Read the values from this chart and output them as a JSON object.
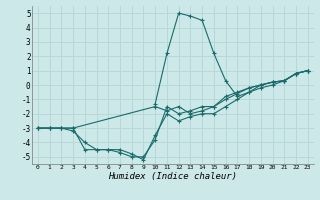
{
  "xlabel": "Humidex (Indice chaleur)",
  "bg_color": "#cce8e8",
  "grid_color": "#b8d8d8",
  "line_color": "#1a6b6b",
  "xlim": [
    -0.5,
    23.5
  ],
  "ylim": [
    -5.5,
    5.5
  ],
  "xticks": [
    0,
    1,
    2,
    3,
    4,
    5,
    6,
    7,
    8,
    9,
    10,
    11,
    12,
    13,
    14,
    15,
    16,
    17,
    18,
    19,
    20,
    21,
    22,
    23
  ],
  "yticks": [
    -5,
    -4,
    -3,
    -2,
    -1,
    0,
    1,
    2,
    3,
    4,
    5
  ],
  "lines": [
    {
      "x": [
        0,
        1,
        2,
        3,
        4,
        5,
        6,
        7,
        8,
        9,
        10,
        11,
        12,
        13,
        14,
        15,
        16,
        17,
        18,
        19,
        20,
        21,
        22,
        23
      ],
      "y": [
        -3,
        -3,
        -3,
        -3,
        -4.5,
        -4.5,
        -4.5,
        -4.7,
        -5,
        -5,
        -3.8,
        -1.5,
        -2.0,
        -1.8,
        -1.5,
        -1.5,
        -1.0,
        -0.6,
        -0.2,
        0.0,
        0.2,
        0.3,
        0.8,
        1.0
      ]
    },
    {
      "x": [
        0,
        1,
        2,
        3,
        4,
        5,
        6,
        7,
        8,
        9,
        10,
        11,
        12,
        13,
        14,
        15,
        16,
        17,
        18,
        19,
        20,
        21,
        22,
        23
      ],
      "y": [
        -3,
        -3,
        -3,
        -3.2,
        -4,
        -4.5,
        -4.5,
        -4.5,
        -4.8,
        -5.2,
        -3.5,
        -2,
        -2.5,
        -2.2,
        -2,
        -2,
        -1.5,
        -1,
        -0.5,
        0,
        0.2,
        0.3,
        0.8,
        1.0
      ]
    },
    {
      "x": [
        10,
        11,
        12,
        13,
        14,
        15,
        16,
        17,
        18,
        19,
        20,
        21,
        22,
        23
      ],
      "y": [
        -1.3,
        2.2,
        5.0,
        4.8,
        4.5,
        2.2,
        0.3,
        -0.8,
        -0.5,
        -0.2,
        0.0,
        0.3,
        0.8,
        1.0
      ]
    },
    {
      "x": [
        0,
        1,
        2,
        3,
        10,
        11,
        12,
        13,
        14,
        15,
        16,
        17,
        18,
        19,
        20,
        21,
        22,
        23
      ],
      "y": [
        -3,
        -3,
        -3,
        -3,
        -1.5,
        -1.8,
        -1.5,
        -2.0,
        -1.8,
        -1.5,
        -0.8,
        -0.5,
        -0.2,
        0.0,
        0.2,
        0.3,
        0.8,
        1.0
      ]
    }
  ]
}
